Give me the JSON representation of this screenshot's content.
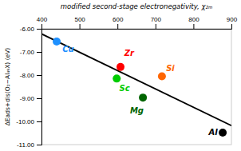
{
  "chart_data": {
    "type": "scatter",
    "title": "modified second-stage electronegativity, χ₂ₘ",
    "y_label": "ΔEads+dis(O₂−Al₄₉X) (eV)",
    "xlim": [
      400,
      900
    ],
    "ylim": [
      -11.0,
      -6.0
    ],
    "xticks": [
      400,
      500,
      600,
      700,
      800,
      900
    ],
    "yticks": [
      {
        "value": -6.0,
        "label": "-6.00"
      },
      {
        "value": -7.0,
        "label": "-7.00"
      },
      {
        "value": -8.0,
        "label": "-8.00"
      },
      {
        "value": -9.0,
        "label": "-9.00"
      },
      {
        "value": -10.0,
        "label": "-10.00"
      },
      {
        "value": -11.0,
        "label": "-11.00"
      }
    ],
    "grid": false,
    "series": [
      {
        "type": "line",
        "color": "#000000",
        "x": [
          400,
          900
        ],
        "values": [
          -6.22,
          -10.18
        ]
      },
      {
        "type": "scatter",
        "x": [
          440,
          608,
          598,
          717,
          667,
          877
        ],
        "values": [
          -6.55,
          -7.65,
          -8.15,
          -8.05,
          -8.97,
          -10.48
        ],
        "colors": [
          "#1E90FF",
          "#FF0000",
          "#00CC00",
          "#FF6600",
          "#006400",
          "#000000"
        ]
      }
    ],
    "annotations": [
      {
        "text": "Cu",
        "x": 455,
        "y": -6.88,
        "color": "#1E90FF"
      },
      {
        "text": "Zr",
        "x": 618,
        "y": -7.05,
        "color": "#FF0000"
      },
      {
        "text": "Sc",
        "x": 605,
        "y": -8.58,
        "color": "#00CC00"
      },
      {
        "text": "Si",
        "x": 728,
        "y": -7.72,
        "color": "#FF6600"
      },
      {
        "text": "Mg",
        "x": 633,
        "y": -9.55,
        "color": "#006400"
      },
      {
        "text": "Al",
        "x": 840,
        "y": -10.48,
        "color": "#000000"
      }
    ]
  }
}
